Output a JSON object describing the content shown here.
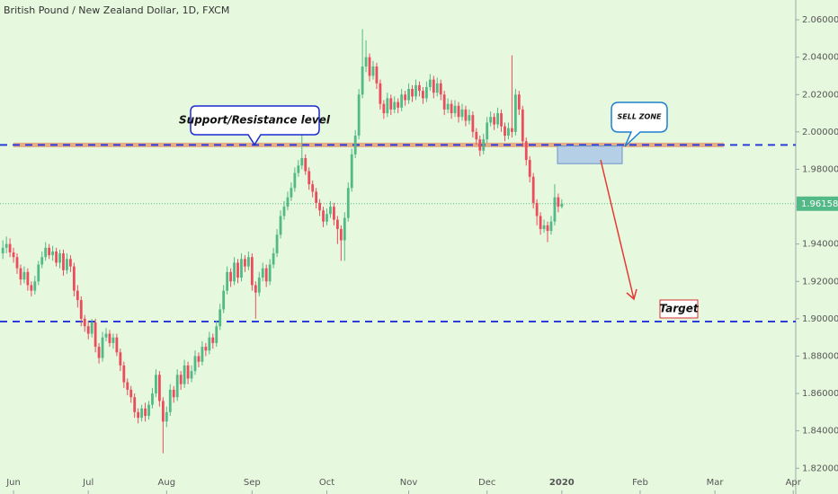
{
  "chart_data": {
    "type": "candlestick",
    "title": "British Pound / New Zealand Dollar, 1D, FXCM",
    "up_color": "#53b987",
    "down_color": "#eb4d5c",
    "open": [
      1.935,
      1.938,
      1.94,
      1.9355,
      1.933,
      1.927,
      1.921,
      1.925,
      1.918,
      1.915,
      1.92,
      1.929,
      1.933,
      1.938,
      1.934,
      1.936,
      1.93,
      1.935,
      1.926,
      1.932,
      1.928,
      1.915,
      1.91,
      1.9,
      1.896,
      1.892,
      1.898,
      1.885,
      1.879,
      1.89,
      1.892,
      1.887,
      1.89,
      1.882,
      1.875,
      1.866,
      1.862,
      1.858,
      1.85,
      1.847,
      1.852,
      1.848,
      1.854,
      1.86,
      1.87,
      1.856,
      1.845,
      1.85,
      1.862,
      1.858,
      1.87,
      1.865,
      1.875,
      1.868,
      1.872,
      1.88,
      1.877,
      1.885,
      1.883,
      1.89,
      1.887,
      1.896,
      1.905,
      1.915,
      1.925,
      1.92,
      1.93,
      1.922,
      1.932,
      1.928,
      1.933,
      1.918,
      1.914,
      1.922,
      1.927,
      1.92,
      1.929,
      1.935,
      1.945,
      1.955,
      1.96,
      1.965,
      1.97,
      1.978,
      1.982,
      1.986,
      1.979,
      1.972,
      1.968,
      1.962,
      1.958,
      1.952,
      1.956,
      1.96,
      1.953,
      1.948,
      1.942,
      1.954,
      1.97,
      1.988,
      1.998,
      2.02,
      2.035,
      2.04,
      2.03,
      2.035,
      2.026,
      2.015,
      2.01,
      2.018,
      2.012,
      2.016,
      2.013,
      2.02,
      2.017,
      2.023,
      2.019,
      2.025,
      2.022,
      2.018,
      2.024,
      2.028,
      2.021,
      2.026,
      2.02,
      2.012,
      2.015,
      2.01,
      2.014,
      2.008,
      2.012,
      2.006,
      2.009,
      2.0,
      1.996,
      1.99,
      1.996,
      2.005,
      2.008,
      2.004,
      2.01,
      2.003,
      1.998,
      2.002,
      2.0,
      2.02,
      2.012,
      1.995,
      1.985,
      1.976,
      1.962,
      1.955,
      1.948,
      1.95,
      1.947,
      1.952,
      1.965,
      1.96
    ],
    "high": [
      1.942,
      1.944,
      1.943,
      1.938,
      1.935,
      1.929,
      1.928,
      1.927,
      1.92,
      1.923,
      1.931,
      1.936,
      1.941,
      1.94,
      1.939,
      1.938,
      1.937,
      1.937,
      1.935,
      1.934,
      1.93,
      1.918,
      1.912,
      1.902,
      1.899,
      1.9,
      1.9,
      1.887,
      1.893,
      1.895,
      1.894,
      1.892,
      1.892,
      1.884,
      1.877,
      1.868,
      1.864,
      1.86,
      1.852,
      1.854,
      1.855,
      1.856,
      1.863,
      1.873,
      1.872,
      1.858,
      1.853,
      1.865,
      1.864,
      1.873,
      1.872,
      1.878,
      1.877,
      1.875,
      1.883,
      1.882,
      1.888,
      1.887,
      1.893,
      1.892,
      1.899,
      1.908,
      1.918,
      1.928,
      1.927,
      1.933,
      1.932,
      1.935,
      1.934,
      1.936,
      1.935,
      1.92,
      1.925,
      1.93,
      1.929,
      1.932,
      1.938,
      1.948,
      1.958,
      1.963,
      1.968,
      1.973,
      1.981,
      1.985,
      2.0,
      1.988,
      1.981,
      1.974,
      1.97,
      1.964,
      1.96,
      1.959,
      1.963,
      1.962,
      1.955,
      1.95,
      1.957,
      1.973,
      1.991,
      2.001,
      2.023,
      2.055,
      2.049,
      2.042,
      2.038,
      2.037,
      2.028,
      2.017,
      2.021,
      2.02,
      2.019,
      2.018,
      2.023,
      2.022,
      2.026,
      2.025,
      2.028,
      2.027,
      2.024,
      2.027,
      2.031,
      2.03,
      2.029,
      2.028,
      2.022,
      2.018,
      2.017,
      2.017,
      2.016,
      2.015,
      2.014,
      2.012,
      2.011,
      2.002,
      1.998,
      1.999,
      2.008,
      2.011,
      2.01,
      2.013,
      2.012,
      2.005,
      2.005,
      2.041,
      2.023,
      2.022,
      2.014,
      1.997,
      1.987,
      1.978,
      1.964,
      1.957,
      1.953,
      1.952,
      1.955,
      1.972,
      1.967,
      1.964
    ],
    "low": [
      1.932,
      1.935,
      1.933,
      1.93,
      1.924,
      1.918,
      1.919,
      1.915,
      1.912,
      1.913,
      1.918,
      1.927,
      1.931,
      1.932,
      1.931,
      1.928,
      1.927,
      1.923,
      1.924,
      1.925,
      1.912,
      1.906,
      1.896,
      1.893,
      1.889,
      1.89,
      1.882,
      1.876,
      1.877,
      1.888,
      1.885,
      1.884,
      1.88,
      1.872,
      1.863,
      1.859,
      1.855,
      1.847,
      1.844,
      1.845,
      1.845,
      1.846,
      1.852,
      1.858,
      1.853,
      1.828,
      1.842,
      1.848,
      1.855,
      1.856,
      1.862,
      1.863,
      1.865,
      1.866,
      1.87,
      1.874,
      1.875,
      1.88,
      1.881,
      1.884,
      1.885,
      1.894,
      1.903,
      1.913,
      1.917,
      1.918,
      1.919,
      1.92,
      1.925,
      1.926,
      1.915,
      1.9,
      1.912,
      1.92,
      1.917,
      1.918,
      1.927,
      1.933,
      1.943,
      1.953,
      1.958,
      1.963,
      1.968,
      1.976,
      1.98,
      1.977,
      1.969,
      1.965,
      1.959,
      1.955,
      1.949,
      1.95,
      1.954,
      1.95,
      1.94,
      1.931,
      1.931,
      1.952,
      1.968,
      1.986,
      1.996,
      2.018,
      2.032,
      2.027,
      2.028,
      2.023,
      2.012,
      2.007,
      2.008,
      2.009,
      2.01,
      2.01,
      2.011,
      2.014,
      2.015,
      2.016,
      2.017,
      2.019,
      2.015,
      2.016,
      2.022,
      2.018,
      2.019,
      2.017,
      2.009,
      2.01,
      2.007,
      2.008,
      2.005,
      2.006,
      2.003,
      2.004,
      1.997,
      1.993,
      1.987,
      1.988,
      1.994,
      2.003,
      2.001,
      2.002,
      2.0,
      1.995,
      1.996,
      1.997,
      1.998,
      2.009,
      1.992,
      1.982,
      1.973,
      1.959,
      1.95,
      1.945,
      1.946,
      1.941,
      1.945,
      1.95,
      1.957,
      1.959
    ],
    "close": [
      1.938,
      1.94,
      1.9355,
      1.933,
      1.927,
      1.921,
      1.925,
      1.918,
      1.915,
      1.92,
      1.929,
      1.933,
      1.938,
      1.934,
      1.936,
      1.93,
      1.935,
      1.926,
      1.932,
      1.928,
      1.915,
      1.91,
      1.9,
      1.896,
      1.892,
      1.898,
      1.885,
      1.879,
      1.89,
      1.892,
      1.887,
      1.89,
      1.882,
      1.875,
      1.866,
      1.862,
      1.858,
      1.85,
      1.847,
      1.852,
      1.848,
      1.854,
      1.86,
      1.87,
      1.856,
      1.845,
      1.85,
      1.862,
      1.858,
      1.87,
      1.865,
      1.875,
      1.868,
      1.872,
      1.88,
      1.877,
      1.885,
      1.883,
      1.89,
      1.887,
      1.896,
      1.905,
      1.915,
      1.925,
      1.92,
      1.93,
      1.922,
      1.932,
      1.928,
      1.933,
      1.918,
      1.914,
      1.922,
      1.927,
      1.92,
      1.929,
      1.935,
      1.945,
      1.955,
      1.96,
      1.965,
      1.97,
      1.978,
      1.982,
      1.986,
      1.979,
      1.972,
      1.968,
      1.962,
      1.958,
      1.952,
      1.956,
      1.96,
      1.953,
      1.948,
      1.942,
      1.954,
      1.97,
      1.988,
      1.998,
      2.02,
      2.035,
      2.04,
      2.03,
      2.035,
      2.026,
      2.015,
      2.01,
      2.018,
      2.012,
      2.016,
      2.013,
      2.02,
      2.017,
      2.023,
      2.019,
      2.025,
      2.022,
      2.018,
      2.024,
      2.028,
      2.021,
      2.026,
      2.02,
      2.012,
      2.015,
      2.01,
      2.014,
      2.008,
      2.012,
      2.006,
      2.009,
      2.0,
      1.996,
      1.99,
      1.996,
      2.005,
      2.008,
      2.004,
      2.01,
      2.003,
      1.998,
      2.002,
      2.0,
      2.02,
      2.012,
      1.995,
      1.985,
      1.976,
      1.962,
      1.955,
      1.948,
      1.95,
      1.947,
      1.952,
      1.965,
      1.96,
      1.9616
    ],
    "xlim": [
      -0.8,
      222.7
    ],
    "xticks": [
      {
        "value": 3,
        "label": "Jun"
      },
      {
        "value": 24,
        "label": "Jul"
      },
      {
        "value": 46,
        "label": "Aug"
      },
      {
        "value": 70,
        "label": "Sep"
      },
      {
        "value": 91,
        "label": "Oct"
      },
      {
        "value": 114,
        "label": "Nov"
      },
      {
        "value": 136,
        "label": "Dec"
      },
      {
        "value": 157,
        "label": "2020"
      },
      {
        "value": 179,
        "label": "Feb"
      },
      {
        "value": 200,
        "label": "Mar"
      },
      {
        "value": 222,
        "label": "Apr"
      }
    ],
    "ylim": [
      1.8062,
      2.0706
    ],
    "yticks": [
      {
        "value": 1.82,
        "label": "1.82000"
      },
      {
        "value": 1.84,
        "label": "1.84000"
      },
      {
        "value": 1.86,
        "label": "1.86000"
      },
      {
        "value": 1.88,
        "label": "1.88000"
      },
      {
        "value": 1.9,
        "label": "1.90000"
      },
      {
        "value": 1.92,
        "label": "1.92000"
      },
      {
        "value": 1.94,
        "label": "1.94000"
      },
      {
        "value": 1.96,
        "label": "1.96000"
      },
      {
        "value": 1.98,
        "label": "1.98000"
      },
      {
        "value": 2.0,
        "label": "2.00000"
      },
      {
        "value": 2.02,
        "label": "2.02000"
      },
      {
        "value": 2.04,
        "label": "2.04000"
      },
      {
        "value": 2.06,
        "label": "2.06000"
      }
    ],
    "last_price": 1.96158,
    "levels": [
      {
        "value": 1.993,
        "color": "#2a3ed8",
        "highlight": "#e8703a"
      },
      {
        "value": 1.8985,
        "color": "#2a3ed8"
      }
    ],
    "sell_zone": {
      "label": "SELL ZONE",
      "low": 1.983,
      "high": 1.9925,
      "color": "#a9c4e8"
    },
    "support_label": "Support/Resistance level",
    "target_label": "Target"
  }
}
